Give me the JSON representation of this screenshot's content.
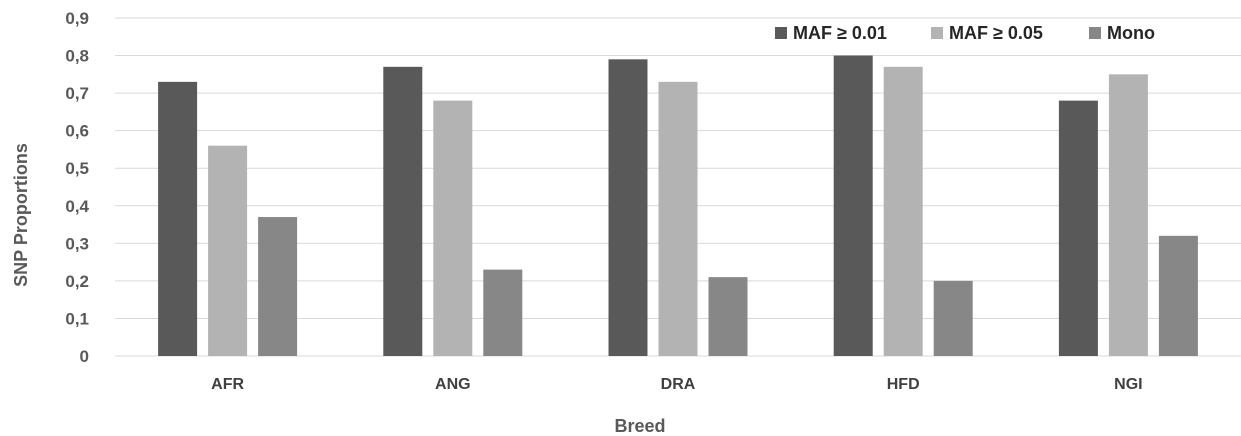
{
  "chart_data": {
    "type": "bar",
    "categories": [
      "AFR",
      "ANG",
      "DRA",
      "HFD",
      "NGI"
    ],
    "series": [
      {
        "name": "MAF ≥ 0.01",
        "color": "#595959",
        "values": [
          0.73,
          0.77,
          0.79,
          0.8,
          0.68
        ]
      },
      {
        "name": "MAF ≥ 0.05",
        "color": "#b3b3b3",
        "values": [
          0.56,
          0.68,
          0.73,
          0.77,
          0.75
        ]
      },
      {
        "name": "Mono",
        "color": "#878787",
        "values": [
          0.37,
          0.23,
          0.21,
          0.2,
          0.32
        ]
      }
    ],
    "title": "",
    "xlabel": "Breed",
    "ylabel": "SNP Proportions",
    "ylim": [
      0,
      0.9
    ],
    "yticks": [
      0,
      0.1,
      0.2,
      0.3,
      0.4,
      0.5,
      0.6,
      0.7,
      0.8,
      0.9
    ],
    "ytick_labels": [
      "0",
      "0,1",
      "0,2",
      "0,3",
      "0,4",
      "0,5",
      "0,6",
      "0,7",
      "0,8",
      "0,9"
    ],
    "grid": true,
    "legend_position": "top-right"
  }
}
